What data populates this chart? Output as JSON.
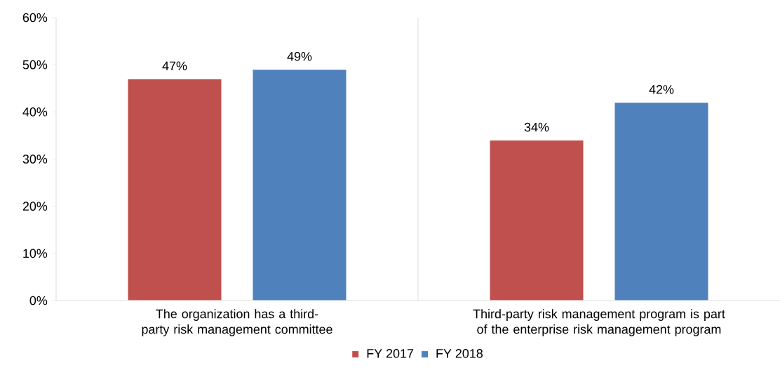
{
  "chart_data": {
    "type": "bar",
    "categories": [
      "The organization has a third-party risk management committee",
      "Third-party risk management program is part of the enterprise risk management program"
    ],
    "series": [
      {
        "name": "FY 2017",
        "color": "#c0504d",
        "values": [
          47,
          34
        ],
        "value_labels": [
          "47%",
          "34%"
        ]
      },
      {
        "name": "FY 2018",
        "color": "#4f81bd",
        "values": [
          49,
          42
        ],
        "value_labels": [
          "49%",
          "42%"
        ]
      }
    ],
    "ylim": [
      0,
      60
    ],
    "yticks": [
      {
        "value": 0,
        "label": "0%"
      },
      {
        "value": 10,
        "label": "10%"
      },
      {
        "value": 20,
        "label": "20%"
      },
      {
        "value": 30,
        "label": "30%"
      },
      {
        "value": 40,
        "label": "40%"
      },
      {
        "value": 50,
        "label": "50%"
      },
      {
        "value": 60,
        "label": "60%"
      }
    ],
    "grid": "x",
    "legend": "bottom"
  }
}
